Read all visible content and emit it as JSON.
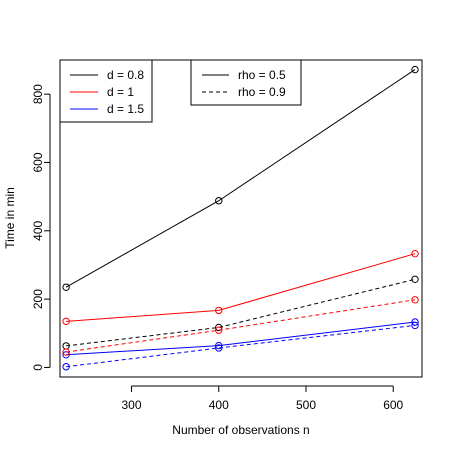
{
  "chart_data": {
    "type": "line",
    "xlabel": "Number of observations n",
    "ylabel": "Time in min",
    "xlim": [
      218,
      633
    ],
    "ylim": [
      -28,
      900
    ],
    "x_ticks": [
      300,
      400,
      500,
      600
    ],
    "y_ticks": [
      0,
      200,
      400,
      600,
      800
    ],
    "x": [
      225,
      400,
      625
    ],
    "series": [
      {
        "name": "d = 0.8",
        "rho": "rho = 0.5",
        "color": "#000000",
        "dash": "solid",
        "values": [
          235,
          488,
          872
        ]
      },
      {
        "name": "d = 1",
        "rho": "rho = 0.5",
        "color": "#ff0000",
        "dash": "solid",
        "values": [
          135,
          167,
          333
        ]
      },
      {
        "name": "d = 1.5",
        "rho": "rho = 0.5",
        "color": "#0000ff",
        "dash": "solid",
        "values": [
          37,
          64,
          133
        ]
      },
      {
        "name": "d = 0.8",
        "rho": "rho = 0.9",
        "color": "#000000",
        "dash": "dashed",
        "values": [
          63,
          117,
          258
        ]
      },
      {
        "name": "d = 1",
        "rho": "rho = 0.9",
        "color": "#ff0000",
        "dash": "dashed",
        "values": [
          45,
          109,
          198
        ]
      },
      {
        "name": "d = 1.5",
        "rho": "rho = 0.9",
        "color": "#0000ff",
        "dash": "dashed",
        "values": [
          2,
          57,
          123
        ]
      }
    ],
    "grid": false,
    "legends": [
      {
        "placement": "top-left",
        "items": [
          {
            "label": "d = 0.8",
            "color": "#000000",
            "dash": "solid"
          },
          {
            "label": "d = 1",
            "color": "#ff0000",
            "dash": "solid"
          },
          {
            "label": "d = 1.5",
            "color": "#0000ff",
            "dash": "solid"
          }
        ]
      },
      {
        "placement": "top-center",
        "items": [
          {
            "label": "rho = 0.5",
            "color": "#000000",
            "dash": "solid"
          },
          {
            "label": "rho = 0.9",
            "color": "#000000",
            "dash": "dashed"
          }
        ]
      }
    ]
  }
}
